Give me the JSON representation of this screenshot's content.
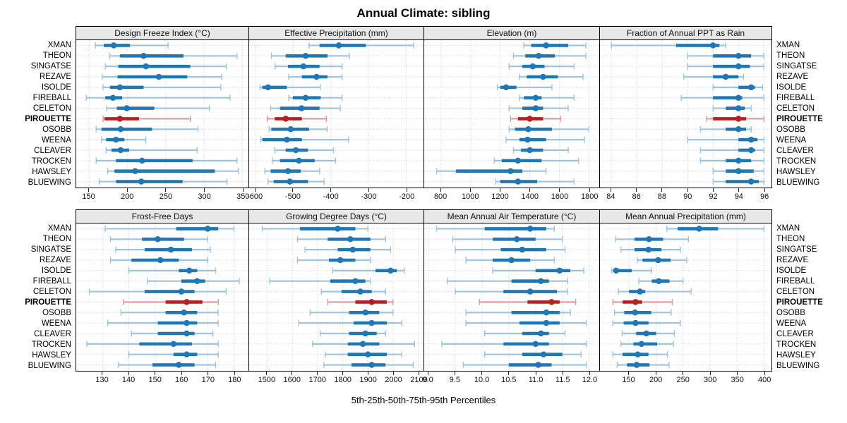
{
  "title": "Annual Climate: sibling",
  "caption": "5th-25th-50th-75th-95th Percentiles",
  "colors": {
    "series_blue": "#1f77b4",
    "series_blue_light": "#9dc3de",
    "highlight_red": "#b22222",
    "highlight_red_light": "#d79c98",
    "strip_bg": "#e8e8e8",
    "grid": "#c6c6c6",
    "frame": "#000000"
  },
  "chart_data": {
    "type": "dotplot",
    "subtype": "percentile-intervals",
    "percentiles": [
      "5th",
      "25th",
      "50th",
      "75th",
      "95th"
    ],
    "legend_note": "thin light line = 5th-95th, thick line = 25th-75th, dot = 50th",
    "highlight_site": "PIROUETTE",
    "sites": [
      "XMAN",
      "THEON",
      "SINGATSE",
      "REZAVE",
      "ISOLDE",
      "FIREBALL",
      "CELETON",
      "PIROUETTE",
      "OSOBB",
      "WEENA",
      "CLEAVER",
      "TROCKEN",
      "HAWSLEY",
      "BLUEWING"
    ],
    "panels": [
      {
        "title": "Design Freeze Index (°C)",
        "band": 0,
        "xlim": [
          133,
          358
        ],
        "ticks": [
          150,
          200,
          250,
          300,
          350
        ],
        "tick_labels": [
          "150",
          "200",
          "250",
          "300",
          "350"
        ],
        "values": [
          [
            158,
            169,
            182,
            203,
            253
          ],
          [
            177,
            190,
            221,
            273,
            343
          ],
          [
            171,
            188,
            224,
            282,
            329
          ],
          [
            167,
            187,
            241,
            278,
            323
          ],
          [
            168,
            177,
            190,
            221,
            322
          ],
          [
            146,
            171,
            181,
            193,
            334
          ],
          [
            173,
            186,
            199,
            235,
            307
          ],
          [
            168,
            170,
            190,
            215,
            282
          ],
          [
            159,
            166,
            191,
            232,
            292
          ],
          [
            166,
            172,
            185,
            196,
            224
          ],
          [
            172,
            179,
            191,
            202,
            291
          ],
          [
            159,
            185,
            219,
            285,
            343
          ],
          [
            174,
            183,
            210,
            314,
            345
          ],
          [
            163,
            185,
            218,
            272,
            330
          ]
        ]
      },
      {
        "title": "Effective Precipitation (mm)",
        "band": 0,
        "xlim": [
          -617,
          -154
        ],
        "ticks": [
          -600,
          -500,
          -400,
          -300,
          -200
        ],
        "tick_labels": [
          "-600",
          "-500",
          "-400",
          "-300",
          "-200"
        ],
        "values": [
          [
            -458,
            -430,
            -379,
            -307,
            -180
          ],
          [
            -558,
            -520,
            -467,
            -409,
            -351
          ],
          [
            -548,
            -514,
            -473,
            -430,
            -370
          ],
          [
            -512,
            -477,
            -438,
            -409,
            -370
          ],
          [
            -588,
            -582,
            -567,
            -517,
            -428
          ],
          [
            -512,
            -501,
            -467,
            -427,
            -370
          ],
          [
            -560,
            -535,
            -478,
            -430,
            -375
          ],
          [
            -569,
            -549,
            -520,
            -477,
            -412
          ],
          [
            -564,
            -558,
            -507,
            -458,
            -410
          ],
          [
            -586,
            -582,
            -517,
            -477,
            -353
          ],
          [
            -549,
            -520,
            -493,
            -461,
            -393
          ],
          [
            -555,
            -535,
            -485,
            -443,
            -388
          ],
          [
            -575,
            -560,
            -514,
            -480,
            -430
          ],
          [
            -567,
            -552,
            -509,
            -461,
            -418
          ]
        ]
      },
      {
        "title": "Elevation (m)",
        "band": 0,
        "xlim": [
          686,
          1870
        ],
        "ticks": [
          800,
          1000,
          1200,
          1400,
          1600,
          1800
        ],
        "tick_labels": [
          "800",
          "1000",
          "1200",
          "1400",
          "1600",
          "1800"
        ],
        "values": [
          [
            1360,
            1410,
            1510,
            1660,
            1780
          ],
          [
            1290,
            1370,
            1460,
            1570,
            1780
          ],
          [
            1260,
            1350,
            1420,
            1500,
            1700
          ],
          [
            1330,
            1380,
            1490,
            1590,
            1760
          ],
          [
            1180,
            1200,
            1240,
            1310,
            1550
          ],
          [
            1330,
            1360,
            1440,
            1480,
            1700
          ],
          [
            1260,
            1350,
            1440,
            1490,
            1660
          ],
          [
            1270,
            1320,
            1400,
            1490,
            1610
          ],
          [
            1260,
            1300,
            1390,
            1550,
            1800
          ],
          [
            1240,
            1330,
            1385,
            1510,
            1770
          ],
          [
            1290,
            1340,
            1400,
            1490,
            1660
          ],
          [
            1160,
            1210,
            1320,
            1480,
            1730
          ],
          [
            770,
            900,
            1270,
            1350,
            1510
          ],
          [
            1170,
            1200,
            1320,
            1450,
            1700
          ]
        ]
      },
      {
        "title": "Fraction of Annual PPT as Rain",
        "band": 0,
        "xlim": [
          83.1,
          96.6
        ],
        "ticks": [
          84,
          86,
          88,
          90,
          92,
          94,
          96
        ],
        "tick_labels": [
          "84",
          "86",
          "88",
          "90",
          "92",
          "94",
          "96"
        ],
        "values": [
          [
            84.0,
            89.1,
            92.0,
            92.5,
            93.0
          ],
          [
            90.0,
            92.0,
            94.0,
            95.0,
            96.0
          ],
          [
            90.0,
            92.0,
            94.0,
            94.9,
            96.0
          ],
          [
            89.7,
            92.0,
            93.0,
            94.0,
            94.4
          ],
          [
            92.0,
            94.0,
            95.0,
            95.3,
            95.9
          ],
          [
            89.5,
            92.0,
            94.0,
            94.3,
            96.0
          ],
          [
            92.0,
            93.0,
            94.0,
            94.5,
            95.0
          ],
          [
            91.5,
            92.0,
            94.0,
            94.6,
            96.0
          ],
          [
            91.0,
            93.0,
            94.0,
            94.6,
            95.0
          ],
          [
            90.0,
            94.0,
            95.0,
            95.5,
            96.0
          ],
          [
            91.0,
            94.0,
            95.0,
            95.3,
            96.0
          ],
          [
            91.0,
            93.0,
            94.0,
            95.0,
            96.0
          ],
          [
            92.0,
            93.0,
            94.0,
            95.2,
            96.0
          ],
          [
            92.0,
            93.0,
            95.0,
            95.6,
            96.0
          ]
        ]
      },
      {
        "title": "Frost-Free Days",
        "band": 1,
        "xlim": [
          120,
          185.5
        ],
        "ticks": [
          130,
          140,
          150,
          160,
          170,
          180
        ],
        "tick_labels": [
          "130",
          "140",
          "150",
          "160",
          "170",
          "180"
        ],
        "values": [
          [
            131,
            158,
            170,
            174,
            180
          ],
          [
            133,
            145,
            151,
            161,
            170
          ],
          [
            135,
            146,
            156,
            164,
            171
          ],
          [
            133,
            141,
            152,
            159,
            170
          ],
          [
            140,
            159,
            163,
            166,
            173
          ],
          [
            147,
            160,
            166,
            169,
            182
          ],
          [
            125,
            146,
            160,
            165,
            177
          ],
          [
            138,
            154,
            162,
            168,
            174
          ],
          [
            137,
            154,
            161,
            166,
            174
          ],
          [
            132,
            151,
            162,
            166,
            174
          ],
          [
            141,
            151,
            162,
            165,
            172
          ],
          [
            124,
            144,
            157,
            164,
            174
          ],
          [
            140,
            157,
            162,
            166,
            174
          ],
          [
            136,
            149,
            159,
            165,
            173
          ]
        ]
      },
      {
        "title": "Growing Degree Days (°C)",
        "band": 1,
        "xlim": [
          1428,
          2121
        ],
        "ticks": [
          1500,
          1600,
          1700,
          1800,
          1900,
          2000,
          2100
        ],
        "tick_labels": [
          "1500",
          "1600",
          "1700",
          "1800",
          "1900",
          "2000",
          "2100"
        ],
        "values": [
          [
            1480,
            1630,
            1780,
            1850,
            1900
          ],
          [
            1620,
            1740,
            1830,
            1910,
            1970
          ],
          [
            1650,
            1780,
            1840,
            1910,
            1990
          ],
          [
            1620,
            1745,
            1790,
            1850,
            1910
          ],
          [
            1760,
            1930,
            1990,
            2015,
            2045
          ],
          [
            1510,
            1750,
            1850,
            1890,
            1910
          ],
          [
            1715,
            1795,
            1870,
            1915,
            1970
          ],
          [
            1740,
            1850,
            1915,
            1975,
            2000
          ],
          [
            1670,
            1825,
            1890,
            1945,
            2000
          ],
          [
            1625,
            1843,
            1915,
            1975,
            2035
          ],
          [
            1710,
            1825,
            1890,
            1935,
            1970
          ],
          [
            1680,
            1820,
            1880,
            1945,
            2085
          ],
          [
            1730,
            1820,
            1900,
            1975,
            2035
          ],
          [
            1725,
            1835,
            1915,
            1970,
            2080
          ]
        ]
      },
      {
        "title": "Mean Annual Air Temperature (°C)",
        "band": 1,
        "xlim": [
          8.92,
          12.19
        ],
        "ticks": [
          9.0,
          9.5,
          10.0,
          10.5,
          11.0,
          11.5,
          12.0
        ],
        "tick_labels": [
          "9.0",
          "9.5",
          "10.0",
          "10.5",
          "11.0",
          "11.5",
          "12.0"
        ],
        "values": [
          [
            9.15,
            10.05,
            10.9,
            11.2,
            11.35
          ],
          [
            9.45,
            10.2,
            10.65,
            11.0,
            11.5
          ],
          [
            9.5,
            10.35,
            10.75,
            11.2,
            11.55
          ],
          [
            9.7,
            10.2,
            10.55,
            10.9,
            11.35
          ],
          [
            10.2,
            11.0,
            11.45,
            11.65,
            11.9
          ],
          [
            9.35,
            10.55,
            11.1,
            11.25,
            11.6
          ],
          [
            9.5,
            10.4,
            10.9,
            11.4,
            11.6
          ],
          [
            9.95,
            10.85,
            11.3,
            11.45,
            11.75
          ],
          [
            9.7,
            10.55,
            11.2,
            11.45,
            11.65
          ],
          [
            9.7,
            10.7,
            11.2,
            11.45,
            11.95
          ],
          [
            10.05,
            10.75,
            11.1,
            11.25,
            11.55
          ],
          [
            9.25,
            10.4,
            11.0,
            11.25,
            11.95
          ],
          [
            10.05,
            10.75,
            11.15,
            11.5,
            11.85
          ],
          [
            9.65,
            10.5,
            11.05,
            11.3,
            11.95
          ]
        ]
      },
      {
        "title": "Mean Annual Precipitation (mm)",
        "band": 1,
        "xlim": [
          96,
          414
        ],
        "ticks": [
          150,
          200,
          250,
          300,
          350,
          400
        ],
        "tick_labels": [
          "150",
          "200",
          "250",
          "300",
          "350",
          "400"
        ],
        "values": [
          [
            220,
            240,
            280,
            315,
            400
          ],
          [
            125,
            160,
            187,
            213,
            260
          ],
          [
            135,
            160,
            186,
            210,
            245
          ],
          [
            165,
            175,
            204,
            227,
            257
          ],
          [
            118,
            121,
            126,
            155,
            192
          ],
          [
            168,
            192,
            205,
            225,
            250
          ],
          [
            130,
            150,
            170,
            180,
            265
          ],
          [
            120,
            138,
            162,
            174,
            230
          ],
          [
            123,
            141,
            161,
            191,
            228
          ],
          [
            120,
            140,
            162,
            186,
            245
          ],
          [
            137,
            163,
            182,
            200,
            234
          ],
          [
            135,
            158,
            173,
            202,
            232
          ],
          [
            120,
            138,
            166,
            186,
            221
          ],
          [
            128,
            146,
            164,
            188,
            224
          ]
        ]
      }
    ]
  }
}
